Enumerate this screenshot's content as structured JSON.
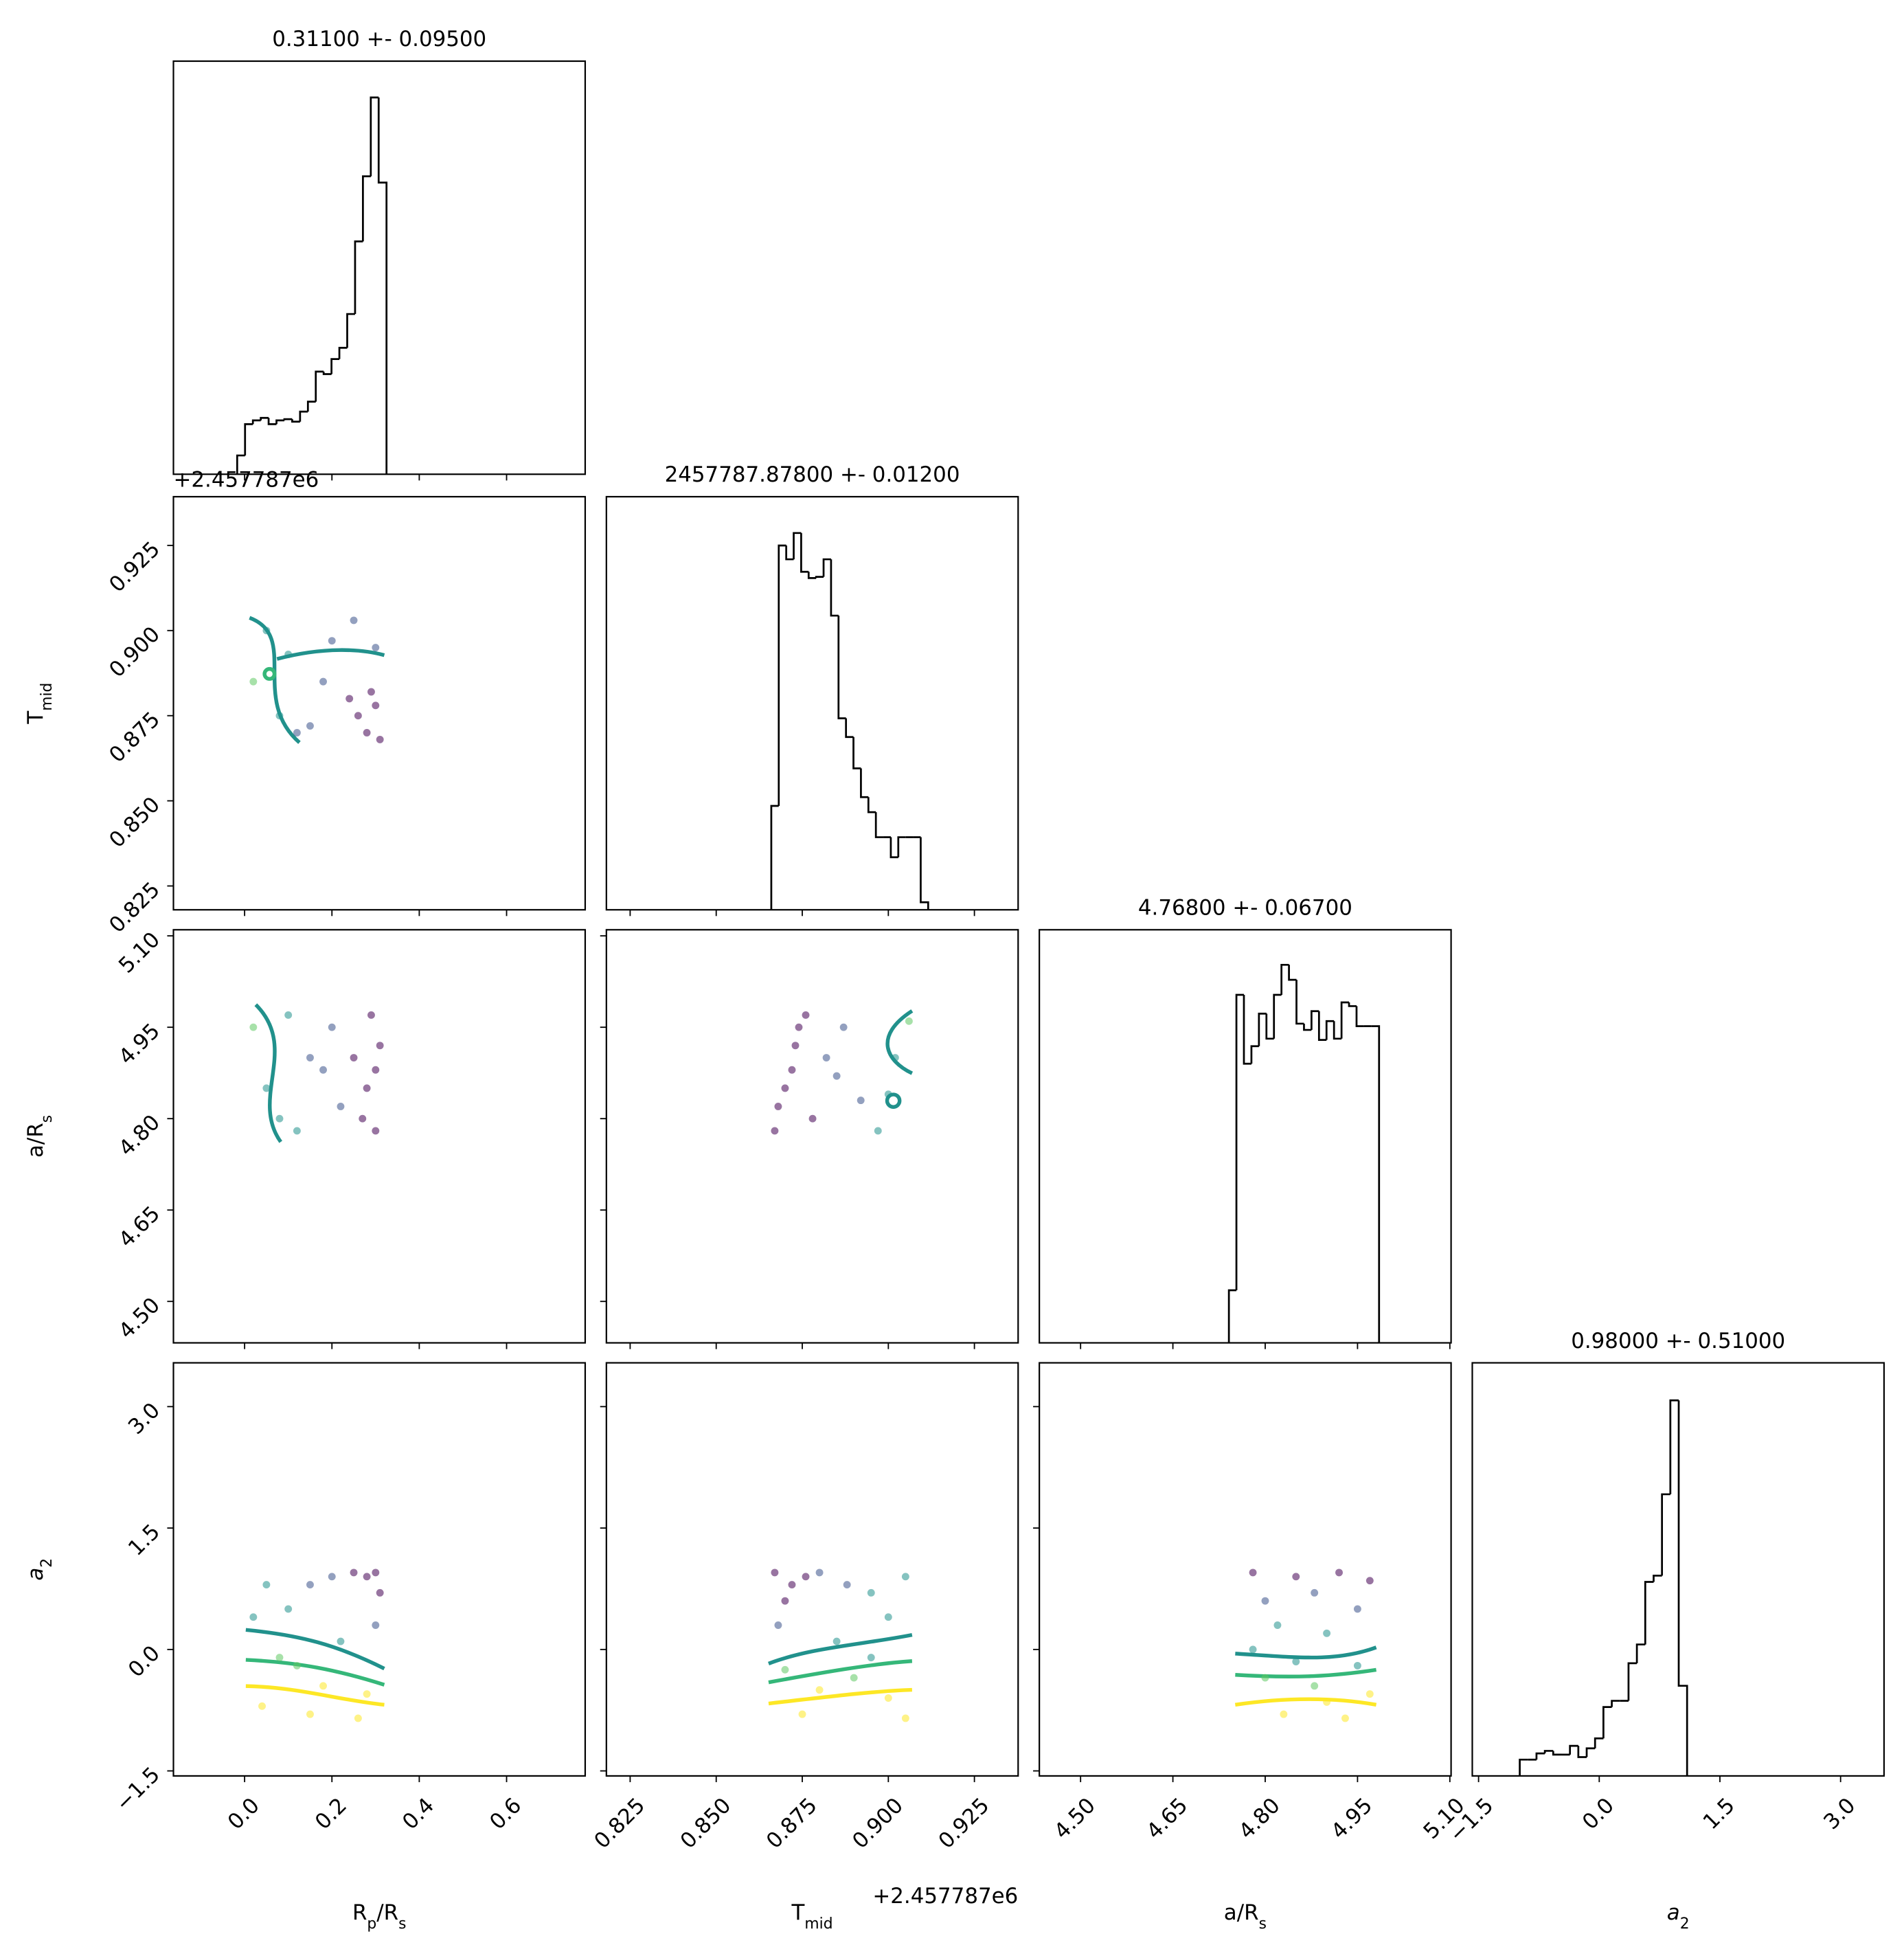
{
  "chart_data": [
    {
      "type": "histogram",
      "title": "0.31100 +- 0.09500",
      "color": "#000000",
      "bins": [
        -0.017,
        0.001,
        0.019,
        0.037,
        0.055,
        0.073,
        0.091,
        0.109,
        0.127,
        0.145,
        0.163,
        0.181,
        0.199,
        0.217,
        0.235,
        0.253,
        0.271,
        0.289,
        0.307,
        0.325
      ],
      "values": [
        15,
        40,
        43,
        45,
        40,
        43,
        44,
        42,
        50,
        58,
        82,
        80,
        92,
        101,
        128,
        186,
        238,
        301,
        233
      ],
      "xlim": [
        -0.163,
        0.78
      ],
      "ylim": [
        0,
        330
      ],
      "xticks": [
        0,
        0.2,
        0.4,
        0.6
      ]
    },
    {
      "type": "scatter",
      "xlim": [
        -0.163,
        0.78
      ],
      "ylim": [
        0.818,
        0.9393
      ],
      "xticks": [
        0,
        0.2,
        0.4,
        0.6
      ],
      "yticks": [
        0.825,
        {
          "value": 0.85,
          "label": "0.850"
        },
        0.875,
        {
          "value": 0.9,
          "label": "0.900"
        },
        0.925
      ],
      "ylabel": [
        {
          "text": "T"
        },
        {
          "text": "mid",
          "sub": true
        }
      ],
      "y_offset": "+2.457787e6",
      "x": [
        0.28,
        0.3,
        0.26,
        0.31,
        0.24,
        0.29,
        0.15,
        0.05,
        0.02,
        0.1,
        0.2,
        0.12,
        0.3,
        0.08,
        0.18,
        0.25
      ],
      "y": [
        0.87,
        0.878,
        0.875,
        0.868,
        0.88,
        0.882,
        0.872,
        0.9,
        0.885,
        0.893,
        0.897,
        0.87,
        0.895,
        0.875,
        0.885,
        0.903
      ],
      "colors": [
        "#440154",
        "#440154",
        "#440154",
        "#440154",
        "#440154",
        "#440154",
        "#3b528b",
        "#21918c",
        "#5ec962",
        "#21918c",
        "#3b528b",
        "#3b528b",
        "#3b528b",
        "#21918c",
        "#3b528b",
        "#3b528b"
      ]
    },
    {
      "type": "histogram",
      "title": "2457787.87800 +- 0.01200",
      "color": "#000000",
      "bins": [
        0.866,
        0.86817,
        0.87034,
        0.87251,
        0.87468,
        0.87685,
        0.87902,
        0.88119,
        0.88336,
        0.88553,
        0.8877,
        0.88987,
        0.89204,
        0.89421,
        0.89638,
        0.89855,
        0.90072,
        0.90289,
        0.90506,
        0.90723,
        0.9094,
        0.91157
      ],
      "values": [
        83,
        291,
        280,
        301,
        270,
        265,
        266,
        280,
        235,
        153,
        138,
        113,
        90,
        78,
        58,
        58,
        42,
        58,
        58,
        58,
        6
      ],
      "xlim": [
        0.8181,
        0.9377
      ],
      "ylim": [
        0,
        330
      ],
      "xticks": [
        0.825,
        0.85,
        0.875,
        0.9,
        0.925
      ]
    },
    {
      "type": "scatter",
      "xlim": [
        -0.163,
        0.78
      ],
      "ylim": [
        4.432,
        5.11
      ],
      "xticks": [
        0,
        0.2,
        0.4,
        0.6
      ],
      "yticks": [
        {
          "value": 4.5,
          "label": "4.50"
        },
        4.65,
        {
          "value": 4.8,
          "label": "4.80"
        },
        4.95,
        {
          "value": 5.1,
          "label": "5.10"
        }
      ],
      "ylabel": [
        {
          "text": "a/R"
        },
        {
          "text": "s",
          "sub": true
        }
      ],
      "x": [
        0.3,
        0.28,
        0.31,
        0.29,
        0.27,
        0.3,
        0.2,
        0.22,
        0.15,
        0.12,
        0.05,
        0.02,
        0.08,
        0.18,
        0.1,
        0.25
      ],
      "y": [
        4.78,
        4.85,
        4.92,
        4.97,
        4.8,
        4.88,
        4.95,
        4.82,
        4.9,
        4.78,
        4.85,
        4.95,
        4.8,
        4.88,
        4.97,
        4.9
      ],
      "colors": [
        "#440154",
        "#440154",
        "#440154",
        "#440154",
        "#440154",
        "#440154",
        "#3b528b",
        "#3b528b",
        "#3b528b",
        "#21918c",
        "#21918c",
        "#5ec962",
        "#21918c",
        "#3b528b",
        "#21918c",
        "#440154"
      ]
    },
    {
      "type": "scatter",
      "xlim": [
        0.8181,
        0.9377
      ],
      "ylim": [
        4.432,
        5.11
      ],
      "xticks": [
        0.825,
        0.85,
        0.875,
        0.9,
        0.925
      ],
      "yticks": [
        4.5,
        4.65,
        4.8,
        4.95,
        5.1
      ],
      "x": [
        0.867,
        0.87,
        0.873,
        0.876,
        0.868,
        0.872,
        0.878,
        0.882,
        0.887,
        0.892,
        0.897,
        0.902,
        0.906,
        0.885,
        0.9,
        0.874
      ],
      "y": [
        4.78,
        4.85,
        4.92,
        4.97,
        4.82,
        4.88,
        4.8,
        4.9,
        4.95,
        4.83,
        4.78,
        4.9,
        4.96,
        4.87,
        4.84,
        4.95
      ],
      "colors": [
        "#440154",
        "#440154",
        "#440154",
        "#440154",
        "#440154",
        "#440154",
        "#440154",
        "#3b528b",
        "#3b528b",
        "#3b528b",
        "#21918c",
        "#21918c",
        "#5ec962",
        "#3b528b",
        "#21918c",
        "#440154"
      ]
    },
    {
      "type": "histogram",
      "title": "4.76800 +- 0.06700",
      "color": "#000000",
      "bins": [
        4.741,
        4.7532,
        4.7654,
        4.7776,
        4.7898,
        4.802,
        4.8142,
        4.8264,
        4.8386,
        4.8508,
        4.863,
        4.8752,
        4.8874,
        4.8996,
        4.9118,
        4.924,
        4.9362,
        4.9484,
        4.9606,
        4.9728,
        4.985
      ],
      "values": [
        42,
        278,
        223,
        237,
        263,
        243,
        278,
        302,
        290,
        255,
        250,
        265,
        242,
        257,
        243,
        272,
        269,
        253,
        253,
        253
      ],
      "xlim": [
        4.433,
        5.102
      ],
      "ylim": [
        0,
        330
      ],
      "xticks": [
        4.5,
        4.65,
        4.8,
        4.95,
        5.1
      ]
    },
    {
      "type": "scatter",
      "xlim": [
        -0.163,
        0.78
      ],
      "ylim": [
        -1.562,
        3.541
      ],
      "xticks": [
        {
          "value": 0,
          "label": "0.0"
        },
        0.2,
        0.4,
        0.6
      ],
      "yticks": [
        {
          "value": -1.5,
          "label": "−1.5"
        },
        {
          "value": 0,
          "label": "0.0"
        },
        1.5,
        {
          "value": 3,
          "label": "3.0"
        }
      ],
      "xlabel": [
        {
          "text": "R"
        },
        {
          "text": "p",
          "sub": true
        },
        {
          "text": "/R"
        },
        {
          "text": "s",
          "sub": true
        }
      ],
      "ylabel": [
        {
          "text": "a",
          "italic": true
        },
        {
          "text": "2",
          "sub": true
        }
      ],
      "x": [
        0.3,
        0.28,
        0.31,
        0.25,
        0.2,
        0.15,
        0.05,
        0.02,
        0.1,
        0.3,
        0.22,
        0.08,
        0.12,
        0.28,
        0.18,
        0.04,
        0.26,
        0.15
      ],
      "y": [
        0.95,
        0.9,
        0.7,
        0.95,
        0.9,
        0.8,
        0.8,
        0.4,
        0.5,
        0.3,
        0.1,
        -0.1,
        -0.2,
        -0.55,
        -0.45,
        -0.7,
        -0.85,
        -0.8
      ],
      "colors": [
        "#440154",
        "#440154",
        "#440154",
        "#440154",
        "#3b528b",
        "#3b528b",
        "#21918c",
        "#21918c",
        "#21918c",
        "#3b528b",
        "#21918c",
        "#5ec962",
        "#5ec962",
        "#fde725",
        "#fde725",
        "#fde725",
        "#fde725",
        "#fde725"
      ]
    },
    {
      "type": "scatter",
      "xlim": [
        0.8181,
        0.9377
      ],
      "ylim": [
        -1.562,
        3.541
      ],
      "xticks": [
        0.825,
        {
          "value": 0.85,
          "label": "0.850"
        },
        0.875,
        {
          "value": 0.9,
          "label": "0.900"
        },
        0.925
      ],
      "yticks": [
        -1.5,
        0,
        1.5,
        3
      ],
      "xlabel": [
        {
          "text": "T"
        },
        {
          "text": "mid",
          "sub": true
        }
      ],
      "x_offset": "+2.457787e6",
      "x": [
        0.867,
        0.872,
        0.876,
        0.87,
        0.88,
        0.888,
        0.895,
        0.905,
        0.9,
        0.868,
        0.885,
        0.895,
        0.87,
        0.89,
        0.88,
        0.9,
        0.875,
        0.905
      ],
      "y": [
        0.95,
        0.8,
        0.9,
        0.6,
        0.95,
        0.8,
        0.7,
        0.9,
        0.4,
        0.3,
        0.1,
        -0.1,
        -0.25,
        -0.35,
        -0.5,
        -0.6,
        -0.8,
        -0.85
      ],
      "colors": [
        "#440154",
        "#440154",
        "#440154",
        "#440154",
        "#3b528b",
        "#3b528b",
        "#21918c",
        "#21918c",
        "#21918c",
        "#3b528b",
        "#21918c",
        "#21918c",
        "#5ec962",
        "#5ec962",
        "#fde725",
        "#fde725",
        "#fde725",
        "#fde725"
      ]
    },
    {
      "type": "scatter",
      "xlim": [
        4.433,
        5.102
      ],
      "ylim": [
        -1.562,
        3.541
      ],
      "xticks": [
        {
          "value": 4.5,
          "label": "4.50"
        },
        4.65,
        {
          "value": 4.8,
          "label": "4.80"
        },
        4.95,
        {
          "value": 5.1,
          "label": "5.10"
        }
      ],
      "yticks": [
        -1.5,
        0,
        1.5,
        3
      ],
      "xlabel": [
        {
          "text": "a/R"
        },
        {
          "text": "s",
          "sub": true
        }
      ],
      "x": [
        4.78,
        4.85,
        4.92,
        4.97,
        4.8,
        4.88,
        4.95,
        4.82,
        4.9,
        4.78,
        4.85,
        4.95,
        4.8,
        4.88,
        4.97,
        4.9,
        4.83,
        4.93
      ],
      "y": [
        0.95,
        0.9,
        0.95,
        0.85,
        0.6,
        0.7,
        0.5,
        0.3,
        0.2,
        0.0,
        -0.15,
        -0.2,
        -0.35,
        -0.45,
        -0.55,
        -0.65,
        -0.8,
        -0.85
      ],
      "colors": [
        "#440154",
        "#440154",
        "#440154",
        "#440154",
        "#3b528b",
        "#3b528b",
        "#3b528b",
        "#21918c",
        "#21918c",
        "#21918c",
        "#21918c",
        "#21918c",
        "#5ec962",
        "#5ec962",
        "#fde725",
        "#fde725",
        "#fde725",
        "#fde725"
      ]
    },
    {
      "type": "histogram",
      "title": "0.98000 +- 0.51000",
      "color": "#000000",
      "bins": [
        -0.988,
        -0.884,
        -0.78,
        -0.676,
        -0.572,
        -0.468,
        -0.364,
        -0.26,
        -0.156,
        -0.052,
        0.052,
        0.156,
        0.26,
        0.364,
        0.468,
        0.572,
        0.676,
        0.78,
        0.884,
        0.988,
        1.092
      ],
      "values": [
        13,
        13,
        18,
        20,
        17,
        17,
        24,
        15,
        22,
        30,
        55,
        60,
        60,
        90,
        105,
        155,
        160,
        225,
        300,
        72
      ],
      "xlim": [
        -1.578,
        3.54
      ],
      "ylim": [
        0,
        330
      ],
      "xticks": [
        {
          "value": -1.5,
          "label": "−1.5"
        },
        {
          "value": 0,
          "label": "0.0"
        },
        1.5,
        {
          "value": 3,
          "label": "3.0"
        }
      ],
      "xlabel": [
        {
          "text": "a",
          "italic": true
        },
        {
          "text": "2",
          "sub": true
        }
      ]
    }
  ]
}
